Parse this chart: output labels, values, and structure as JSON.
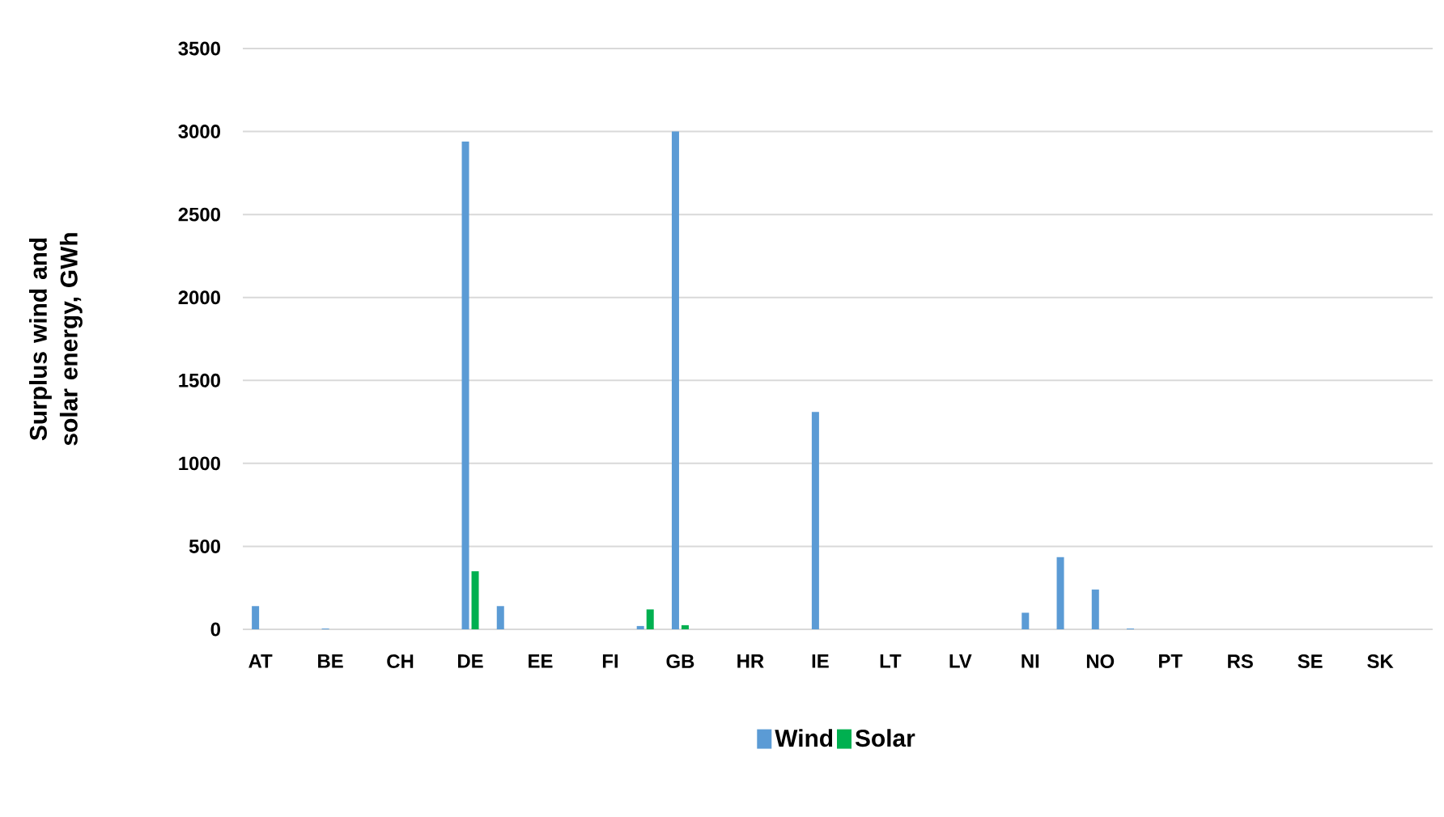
{
  "chart_data": {
    "type": "bar",
    "ylabel": "Surplus wind and solar energy, GWh",
    "categories": [
      "AT",
      null,
      "BE",
      null,
      "CH",
      null,
      "DE",
      null,
      "EE",
      null,
      "FI",
      null,
      "GB",
      null,
      "HR",
      null,
      "IE",
      null,
      "LT",
      null,
      "LV",
      null,
      "NI",
      null,
      "NO",
      null,
      "PT",
      null,
      "RS",
      null,
      "SE",
      null,
      "SK",
      null
    ],
    "series": [
      {
        "name": "Wind",
        "color": "#5b9bd5",
        "values": [
          140,
          0,
          5,
          0,
          0,
          0,
          2940,
          140,
          0,
          0,
          0,
          20,
          3000,
          0,
          0,
          0,
          1310,
          0,
          0,
          0,
          0,
          0,
          100,
          435,
          240,
          5,
          0,
          0,
          0,
          0,
          0,
          0,
          0,
          0
        ]
      },
      {
        "name": "Solar",
        "color": "#00b050",
        "values": [
          0,
          0,
          0,
          0,
          0,
          0,
          350,
          0,
          0,
          0,
          0,
          120,
          25,
          0,
          0,
          0,
          0,
          0,
          0,
          0,
          0,
          0,
          0,
          0,
          0,
          0,
          0,
          0,
          0,
          0,
          0,
          0,
          0,
          0
        ]
      }
    ],
    "ylim": [
      0,
      3500
    ],
    "yticks": [
      0,
      500,
      1000,
      1500,
      2000,
      2500,
      3000,
      3500
    ],
    "grid": "y",
    "legend": "bottom"
  }
}
